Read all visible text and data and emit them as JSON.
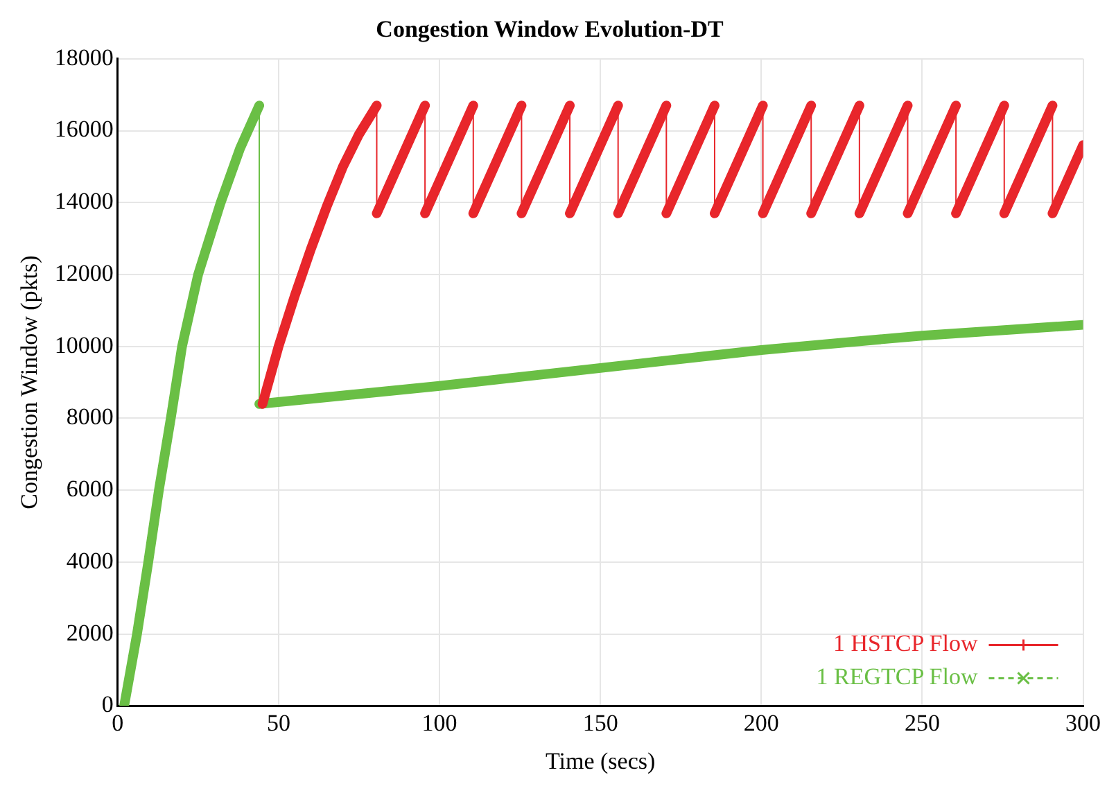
{
  "chart_data": {
    "type": "line",
    "title": "Congestion Window Evolution-DT",
    "xlabel": "Time (secs)",
    "ylabel": "Congestion Window (pkts)",
    "xlim": [
      0,
      300
    ],
    "xticks": [
      0,
      50,
      100,
      150,
      200,
      250,
      300
    ],
    "ylim": [
      0,
      18000
    ],
    "yticks": [
      0,
      2000,
      4000,
      6000,
      8000,
      10000,
      12000,
      14000,
      16000,
      18000
    ],
    "grid": true,
    "legend": "bottom right",
    "series": [
      {
        "name": "1 HSTCP Flow",
        "color": "#e8262b",
        "x": [
          45,
          50,
          55,
          60,
          65,
          70,
          75,
          80.5,
          80.5,
          95.5,
          95.5,
          110.5,
          110.5,
          125.5,
          125.5,
          140.5,
          140.5,
          155.5,
          155.5,
          170.5,
          170.5,
          185.5,
          185.5,
          200.5,
          200.5,
          215.5,
          215.5,
          230.5,
          230.5,
          245.5,
          245.5,
          260.5,
          260.5,
          275.5,
          275.5,
          290.5,
          290.5,
          300
        ],
        "values": [
          8400,
          10000,
          11400,
          12700,
          13900,
          15000,
          15900,
          16700,
          13700,
          16700,
          13700,
          16700,
          13700,
          16700,
          13700,
          16700,
          13700,
          16700,
          13700,
          16700,
          13700,
          16700,
          13700,
          16700,
          13700,
          16700,
          13700,
          16700,
          13700,
          16700,
          13700,
          16700,
          13700,
          16700,
          13700,
          16700,
          13700,
          15600
        ]
      },
      {
        "name": "1 REGTCP Flow",
        "color": "#6abf45",
        "x": [
          2,
          6,
          9.5,
          12.8,
          16.5,
          20,
          25,
          32,
          38,
          44,
          44,
          100,
          150,
          200,
          250,
          300
        ],
        "values": [
          0,
          2000,
          4000,
          6000,
          8000,
          10000,
          12000,
          14000,
          15500,
          16700,
          8400,
          8900,
          9400,
          9900,
          10300,
          10600
        ]
      }
    ]
  }
}
